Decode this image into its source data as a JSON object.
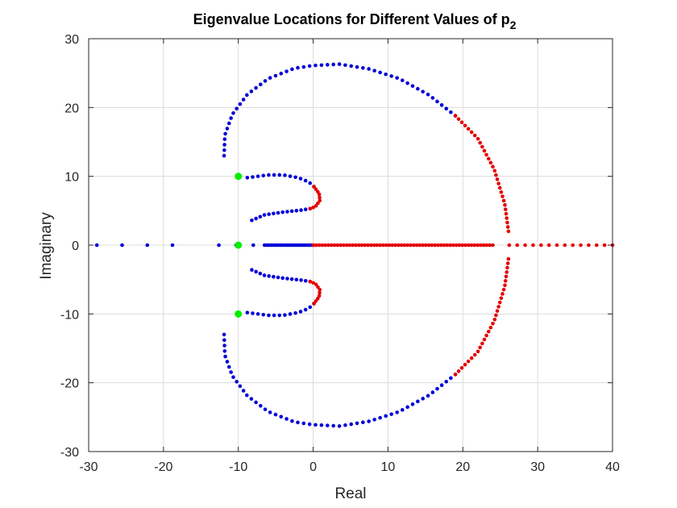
{
  "chart_data": {
    "type": "scatter",
    "title": "Eigenvalue Locations for Different Values of p",
    "title_subscript": "2",
    "xlabel": "Real",
    "ylabel": "Imaginary",
    "xlim": [
      -30,
      40
    ],
    "ylim": [
      -30,
      30
    ],
    "xticks": [
      -30,
      -20,
      -10,
      0,
      10,
      20,
      30,
      40
    ],
    "yticks": [
      -30,
      -20,
      -10,
      0,
      10,
      20,
      30
    ],
    "xtick_labels": [
      "-30",
      "-20",
      "-10",
      "0",
      "10",
      "20",
      "30",
      "40"
    ],
    "ytick_labels": [
      "-30",
      "-20",
      "-10",
      "0",
      "10",
      "20",
      "30"
    ],
    "grid": true,
    "legend": "none",
    "colors": {
      "blue": "#0000d9",
      "red": "#e60000",
      "green": "#00ee00",
      "grid": "#dcdcdc",
      "axis": "#262626"
    },
    "series": [
      {
        "color": "blue",
        "description_points": "stable branches",
        "segments": [
          {
            "kind": "line",
            "from": [
              -28.9,
              0
            ],
            "to": [
              -18.8,
              0
            ],
            "n": 4
          },
          {
            "kind": "line",
            "from": [
              -12.6,
              0
            ],
            "to": [
              -8.0,
              0
            ],
            "n": 3
          },
          {
            "kind": "line",
            "from": [
              -6.5,
              0
            ],
            "to": [
              0,
              0
            ],
            "n": 22
          },
          {
            "kind": "poly",
            "points": [
              [
                -11.9,
                13.0
              ],
              [
                -11.8,
                16.0
              ],
              [
                -10.8,
                19.0
              ],
              [
                -8.8,
                21.9
              ],
              [
                -6.0,
                24.2
              ],
              [
                -2.5,
                25.7
              ],
              [
                0,
                26.1
              ],
              [
                3.5,
                26.3
              ],
              [
                7.5,
                25.6
              ],
              [
                11.5,
                24.2
              ],
              [
                15.5,
                21.8
              ],
              [
                19.0,
                18.8
              ]
            ],
            "n": 52
          },
          {
            "kind": "poly",
            "points": [
              [
                -11.9,
                -13.0
              ],
              [
                -11.8,
                -16.0
              ],
              [
                -10.8,
                -19.0
              ],
              [
                -8.8,
                -21.9
              ],
              [
                -6.0,
                -24.2
              ],
              [
                -2.5,
                -25.7
              ],
              [
                0,
                -26.1
              ],
              [
                3.5,
                -26.3
              ],
              [
                7.5,
                -25.6
              ],
              [
                11.5,
                -24.2
              ],
              [
                15.5,
                -21.8
              ],
              [
                19.0,
                -18.8
              ]
            ],
            "n": 52
          },
          {
            "kind": "poly",
            "points": [
              [
                -8.8,
                9.8
              ],
              [
                -6.0,
                10.2
              ],
              [
                -4.0,
                10.2
              ],
              [
                -2.0,
                9.8
              ],
              [
                -0.6,
                9.2
              ],
              [
                0.1,
                8.5
              ]
            ],
            "n": 14
          },
          {
            "kind": "poly",
            "points": [
              [
                -8.2,
                3.6
              ],
              [
                -6.5,
                4.4
              ],
              [
                -4.0,
                4.8
              ],
              [
                -1.5,
                5.1
              ],
              [
                -0.4,
                5.3
              ]
            ],
            "n": 14
          },
          {
            "kind": "poly",
            "points": [
              [
                -8.8,
                -9.8
              ],
              [
                -6.0,
                -10.2
              ],
              [
                -4.0,
                -10.2
              ],
              [
                -2.0,
                -9.8
              ],
              [
                -0.6,
                -9.2
              ],
              [
                0.1,
                -8.5
              ]
            ],
            "n": 14
          },
          {
            "kind": "poly",
            "points": [
              [
                -8.2,
                -3.6
              ],
              [
                -6.5,
                -4.4
              ],
              [
                -4.0,
                -4.8
              ],
              [
                -1.5,
                -5.1
              ],
              [
                -0.4,
                -5.3
              ]
            ],
            "n": 14
          }
        ]
      },
      {
        "color": "red",
        "description_points": "unstable branches",
        "segments": [
          {
            "kind": "line",
            "from": [
              0,
              0
            ],
            "to": [
              24,
              0
            ],
            "n": 60
          },
          {
            "kind": "line",
            "from": [
              26.2,
              0
            ],
            "to": [
              40,
              0
            ],
            "n": 14
          },
          {
            "kind": "poly",
            "points": [
              [
                19.0,
                18.8
              ],
              [
                22.0,
                15.5
              ],
              [
                24.2,
                11.0
              ],
              [
                25.6,
                6.0
              ],
              [
                26.1,
                2.0
              ]
            ],
            "n": 30
          },
          {
            "kind": "poly",
            "points": [
              [
                19.0,
                -18.8
              ],
              [
                22.0,
                -15.5
              ],
              [
                24.2,
                -11.0
              ],
              [
                25.6,
                -6.0
              ],
              [
                26.1,
                -2.0
              ]
            ],
            "n": 30
          },
          {
            "kind": "poly",
            "points": [
              [
                0.1,
                8.5
              ],
              [
                0.8,
                7.5
              ],
              [
                0.9,
                6.5
              ],
              [
                0.3,
                5.6
              ],
              [
                -0.4,
                5.3
              ]
            ],
            "n": 10
          },
          {
            "kind": "poly",
            "points": [
              [
                0.1,
                -8.5
              ],
              [
                0.8,
                -7.5
              ],
              [
                0.9,
                -6.5
              ],
              [
                0.3,
                -5.6
              ],
              [
                -0.4,
                -5.3
              ]
            ],
            "n": 10
          }
        ]
      },
      {
        "color": "green",
        "description_points": "reference eigenvalues",
        "points": [
          [
            -10,
            10
          ],
          [
            -10,
            0
          ],
          [
            -10,
            -10
          ]
        ]
      }
    ]
  }
}
